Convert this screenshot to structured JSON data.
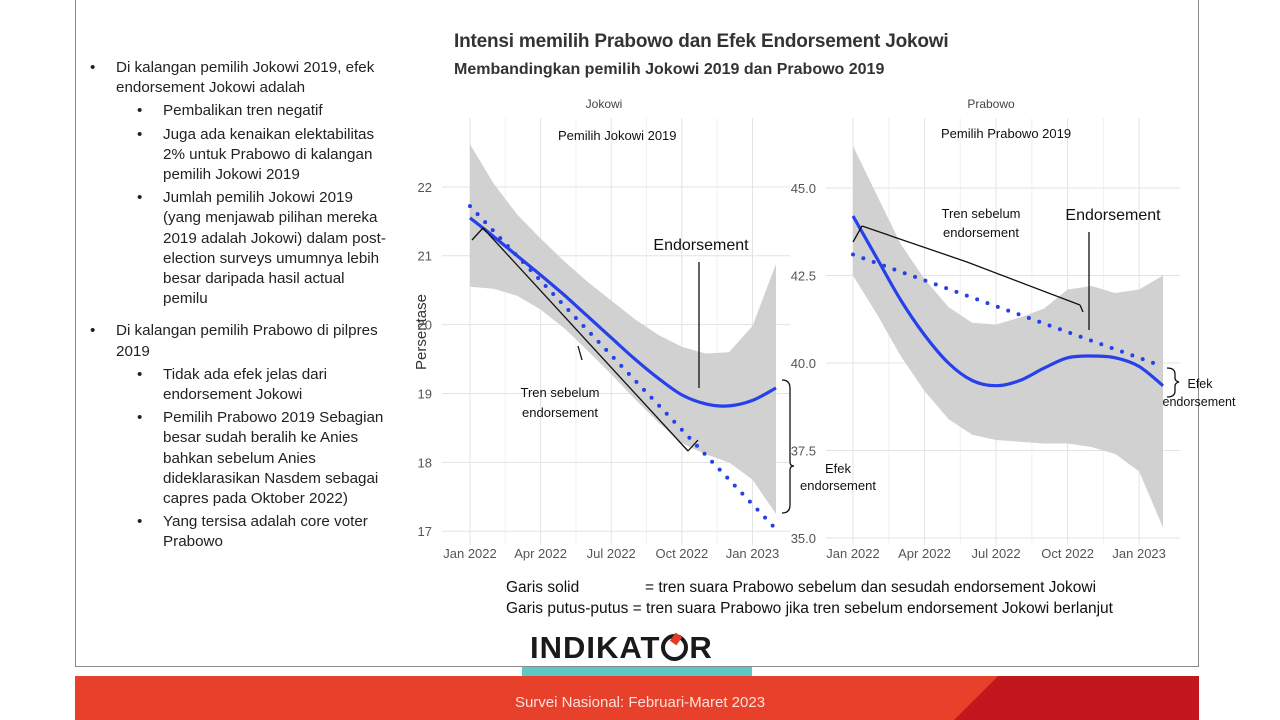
{
  "bullets": [
    {
      "text": "Di kalangan pemilih Jokowi 2019, efek endorsement Jokowi adalah",
      "sub": [
        "Pembalikan tren negatif",
        "Juga ada kenaikan elektabilitas 2% untuk Prabowo di kalangan pemilih Jokowi 2019",
        "Jumlah pemilih Jokowi 2019 (yang menjawab pilihan mereka 2019 adalah Jokowi) dalam post-election surveys umumnya lebih besar daripada hasil actual pemilu"
      ]
    },
    {
      "text": "Di kalangan pemilih Prabowo di pilpres 2019",
      "sub": [
        "Tidak ada efek jelas dari endorsement Jokowi",
        "Pemilih Prabowo 2019 Sebagian besar sudah beralih ke Anies bahkan sebelum Anies dideklarasikan Nasdem sebagai capres pada Oktober 2022)",
        "Yang tersisa adalah core voter Prabowo"
      ]
    }
  ],
  "legend": {
    "solid_key": "Garis solid",
    "solid_text": "= tren suara Prabowo sebelum dan sesudah endorsement Jokowi",
    "dotted_key": "Garis putus-putus",
    "dotted_text": "= tren suara Prabowo jika tren sebelum endorsement Jokowi berlanjut"
  },
  "logo": {
    "part1": "INDIKAT",
    "part2": "R"
  },
  "footer": "Survei Nasional: Februari-Maret 2023",
  "colors": {
    "line": "#2640ea",
    "ribbon": "#cfcfcf",
    "footer": "#e8412b",
    "footer_dark": "#c2171c",
    "teal": "#5ec8c2"
  },
  "chart_data": {
    "type": "line",
    "title": "Intensi memilih Prabowo dan Efek Endorsement Jokowi",
    "subtitle": "Membandingkan pemilih Jokowi 2019 dan Prabowo 2019",
    "ylabel": "Persentase",
    "x_ticks": [
      "Jan 2022",
      "Apr 2022",
      "Jul 2022",
      "Oct 2022",
      "Jan 2023"
    ],
    "panels": [
      {
        "facet": "Jokowi",
        "label": "Pemilih Jokowi 2019",
        "y_ticks": [
          "17",
          "18",
          "19",
          "20",
          "21",
          "22"
        ],
        "ylim": [
          16.8,
          23.0
        ],
        "x": [
          "2022-01",
          "2022-02",
          "2022-03",
          "2022-04",
          "2022-05",
          "2022-06",
          "2022-07",
          "2022-08",
          "2022-09",
          "2022-10",
          "2022-11",
          "2022-12",
          "2023-01",
          "2023-02"
        ],
        "trend": [
          21.55,
          21.28,
          21.0,
          20.72,
          20.43,
          20.12,
          19.81,
          19.5,
          19.22,
          18.98,
          18.85,
          18.82,
          18.9,
          19.08
        ],
        "lower": [
          20.55,
          20.52,
          20.42,
          20.22,
          19.95,
          19.62,
          19.28,
          18.92,
          18.58,
          18.28,
          18.12,
          18.0,
          17.75,
          17.25
        ],
        "upper": [
          22.62,
          22.05,
          21.6,
          21.25,
          20.92,
          20.62,
          20.35,
          20.08,
          19.85,
          19.68,
          19.58,
          19.6,
          19.98,
          20.88
        ],
        "projection": {
          "x": [
            "2022-01",
            "2023-02"
          ],
          "y": [
            21.72,
            17.03
          ]
        },
        "annotations": [
          "Tren sebelum endorsement",
          "Endorsement",
          "Efek endorsement"
        ]
      },
      {
        "facet": "Prabowo",
        "label": "Pemilih Prabowo 2019",
        "y_ticks": [
          "35.0",
          "37.5",
          "40.0",
          "42.5",
          "45.0"
        ],
        "ylim": [
          34.8,
          47.0
        ],
        "x": [
          "2022-01",
          "2022-02",
          "2022-03",
          "2022-04",
          "2022-05",
          "2022-06",
          "2022-07",
          "2022-08",
          "2022-09",
          "2022-10",
          "2022-11",
          "2022-12",
          "2023-01",
          "2023-02"
        ],
        "trend": [
          44.2,
          43.0,
          41.8,
          40.8,
          40.0,
          39.5,
          39.35,
          39.5,
          39.85,
          40.15,
          40.2,
          40.15,
          39.9,
          39.35
        ],
        "lower": [
          42.5,
          41.4,
          40.2,
          39.2,
          38.4,
          37.95,
          37.8,
          37.75,
          37.7,
          37.7,
          37.6,
          37.4,
          36.9,
          35.3
        ],
        "upper": [
          46.2,
          44.8,
          43.4,
          42.4,
          41.6,
          41.15,
          41.1,
          41.3,
          41.55,
          42.1,
          42.2,
          42.0,
          42.1,
          42.5
        ],
        "projection": {
          "x": [
            "2022-01",
            "2023-02"
          ],
          "y": [
            43.1,
            39.9
          ]
        },
        "annotations": [
          "Tren sebelum endorsement",
          "Endorsement",
          "Efek endorsement"
        ]
      }
    ]
  }
}
